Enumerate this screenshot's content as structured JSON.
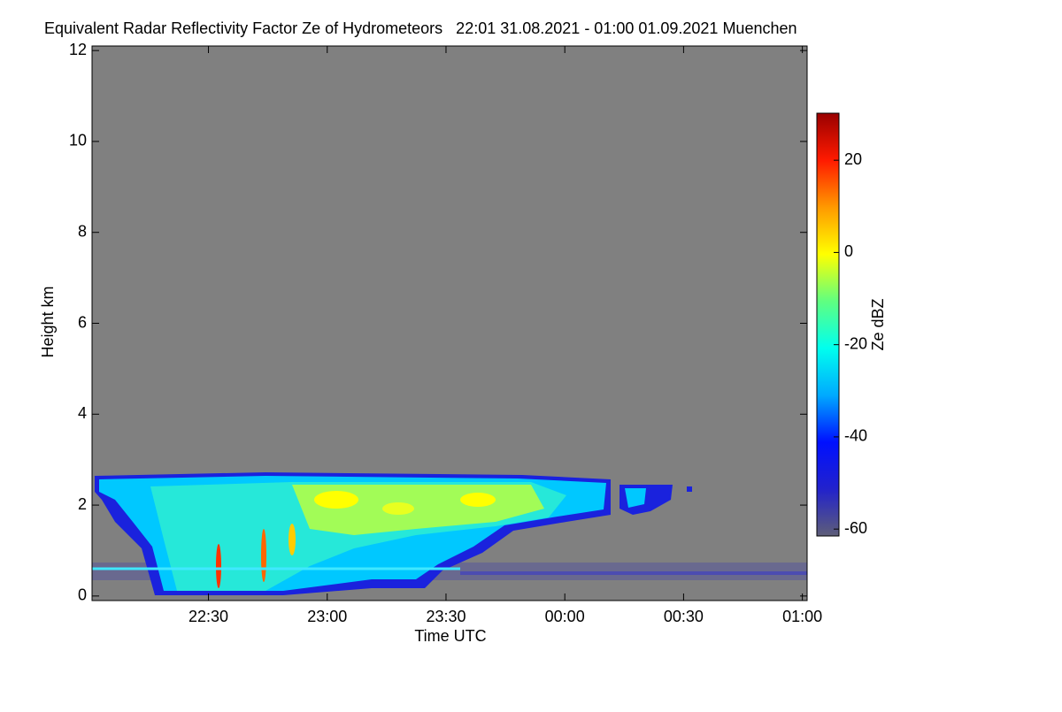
{
  "chart_data": {
    "type": "heatmap",
    "title": "Equivalent Radar Reflectivity Factor Ze of Hydrometeors   22:01 31.08.2021 - 01:00 01.09.2021 Muenchen",
    "x_label": "Time UTC",
    "y_label": "Height km",
    "colorbar_label": "Ze dBZ",
    "xlim": [
      22.01,
      25.02
    ],
    "xticks": [
      {
        "value": 22.5,
        "label": "22:30"
      },
      {
        "value": 23,
        "label": "23:00"
      },
      {
        "value": 23.5,
        "label": "23:30"
      },
      {
        "value": 24,
        "label": "00:00"
      },
      {
        "value": 24.5,
        "label": "00:30"
      },
      {
        "value": 25,
        "label": "01:00"
      }
    ],
    "ylim": [
      -0.1,
      12.1
    ],
    "yticks": [
      0,
      2,
      4,
      6,
      8,
      10,
      12
    ],
    "zlim": [
      -61.5,
      30.2
    ],
    "zticks": [
      -60,
      -40,
      -20,
      0,
      20
    ],
    "background": "#808080",
    "colormap": [
      "#5e5e78",
      "#2222cc",
      "#0010ff",
      "#00aaff",
      "#00ffee",
      "#60ff80",
      "#ffff00",
      "#ff9900",
      "#ff1a00",
      "#990000"
    ]
  }
}
